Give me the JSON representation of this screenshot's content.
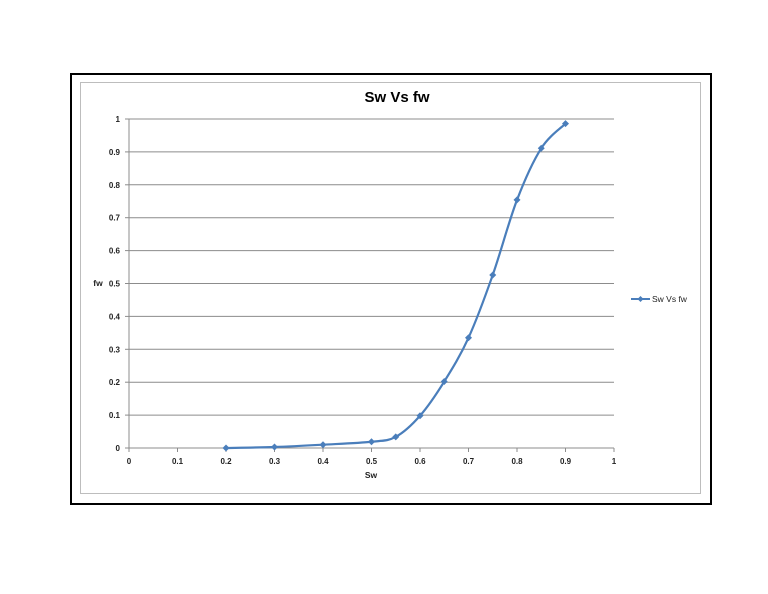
{
  "chart_data": {
    "type": "line",
    "title": "Sw Vs fw",
    "xlabel": "Sw",
    "ylabel": "fw",
    "xlim": [
      0,
      1
    ],
    "ylim": [
      0,
      1
    ],
    "xticks": [
      "0",
      "0.1",
      "0.2",
      "0.3",
      "0.4",
      "0.5",
      "0.6",
      "0.7",
      "0.8",
      "0.9",
      "1"
    ],
    "yticks": [
      "0",
      "0.1",
      "0.2",
      "0.3",
      "0.4",
      "0.5",
      "0.6",
      "0.7",
      "0.8",
      "0.9",
      "1"
    ],
    "grid": "horizontal",
    "smooth": true,
    "marker": "diamond",
    "legend_position": "right",
    "series": [
      {
        "name": "Sw Vs fw",
        "color": "#4a7ebb",
        "x": [
          0.2,
          0.3,
          0.4,
          0.5,
          0.55,
          0.6,
          0.65,
          0.7,
          0.75,
          0.8,
          0.85,
          0.9
        ],
        "y": [
          0.0,
          0.003,
          0.01,
          0.019,
          0.034,
          0.098,
          0.202,
          0.335,
          0.526,
          0.754,
          0.911,
          0.986
        ]
      }
    ]
  }
}
